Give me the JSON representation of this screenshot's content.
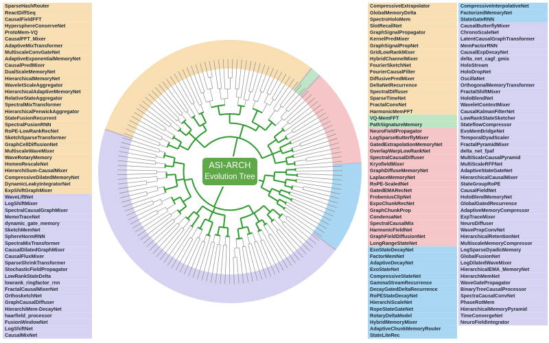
{
  "center": {
    "title": "ASI-ARCH",
    "subtitle": "Evolution Tree"
  },
  "colors": {
    "branch": "#2e9a2e",
    "leaf_line": "#8a8a8a",
    "center_box": "#5ea848"
  },
  "sectors": [
    {
      "name": "blue",
      "color": "#a8d6f3",
      "text_color": "#1a3558",
      "labels": [
        "ExoStateDecayNet",
        "FactorMemNet",
        "AdaptiveDecayNet",
        "ExoStateNet",
        "CompressiveStateNet",
        "GammaStreamRecurrence",
        "DecayGatedDeltaRecurrence",
        "RoPEStateDecayNet",
        "HierarchiScaleNet",
        "RopeStateGateNet",
        "RotaryDeltaModel",
        "HybridMemoryMixer",
        "AdaptiveChunkMemoryRouter",
        "StateLiteRec",
        "CompressiveInterpolativeNet",
        "FactorizedMemoryNet",
        "StateGateRNN"
      ]
    },
    {
      "name": "purple",
      "color": "#d6d2f2",
      "text_color": "#1f2a36",
      "labels": [
        "CausalButterflyMixer",
        "ChronoScaleNet",
        "LatentCausalGraphTransformer",
        "MemFactorRNN",
        "CausalExpDecayNet",
        "delta_net_cagf_gmix",
        "HoloStream",
        "HoloDropNet",
        "OscillaNet",
        "OrthogonalMemoryTransformer",
        "FractalShiftMixer",
        "HoloBlendNet",
        "WaveletContextMixer",
        "CausalKalmanFilterNet",
        "LowRankStateSketcher",
        "StateflowCompressor",
        "EvoMemBridgeNet",
        "TemporalDyadScaler",
        "FractalPyramidMixer",
        "delta_net_fpaf",
        "MultiScaleCausalPyramid",
        "MultiScaleRFFNet",
        "AdaptiveStateGateNet",
        "HierarchicalCausalMixer",
        "StateGroupRoPE",
        "CausalFieldNet",
        "HoloBlendMemoryNet",
        "GlobalGatedRecurrence",
        "AdaptiveMemoryCompressor",
        "ExpTraceMixer",
        "NeuroDiffuser",
        "WavePropConvNet",
        "HierarchicalRetentionNet",
        "MultiscaleMemoryCompressor",
        "LogSparseDyadicMemory",
        "GlobalFusionNet",
        "LogDilatedWaveMixer",
        "HierarchicalEMA_MemoryNet",
        "HierarchMemNet",
        "WaveGatePropagator",
        "BinaryTreeCausalProcessor",
        "SpectraCausalConvNet",
        "PhaseRotMem",
        "HierarchicalMemoryPyramid",
        "TimeConvergeNet",
        "NeuroFieldIntegrator",
        "CausalMixNet",
        "LogShiftNet",
        "FusionWindowNet",
        "haarfield_processor",
        "HierarchiMem-DecayNet",
        "GraphCausalDiffuser",
        "OrthosketchNet",
        "FractalCausalMixerNet",
        "lowrank_ringfactor_rnn",
        "LowRankStateDelta",
        "StochasticFieldPropagator",
        "SparseShrinkTransformer",
        "CausalFluxMixer",
        "CausalDilatedGraphMixer",
        "SpectraMixTransformer",
        "SphereNormRNN",
        "SketchMemNet",
        "dynamic_gate_memory",
        "MemoTraceNet",
        "SpectralCausalGraphMixer",
        "LogShiftMixer",
        "WaveLiftNet"
      ]
    },
    {
      "name": "orange",
      "color": "#f8deb3",
      "text_color": "#1f2a36",
      "labels": [
        "ExpShiftGraphMixer",
        "DynamicLeakyIntegratorNet",
        "CompressiveDilatedMemoryNet",
        "HierarchiSum-CausalMixer",
        "HomeoRescaleNet",
        "WaveRotaryMemory",
        "MultiscaleWaveMixer",
        "GraphCellDiffusionNet",
        "SketchSparseTransformer",
        "RoPE-LowRankRecNet",
        "SpectralFusionRNN",
        "StateFusionRecurrent",
        "HierarchicalFenwickAggregator",
        "SpectralMixTransformer",
        "RelativeStateAggregator",
        "HierarchicalAdaptiveMemoryNet",
        "WaveletScaleAggregator",
        "HierarchicalMemoryNet",
        "DualScaleMemoryNet",
        "CausalPredMixer",
        "AdaptiveExponentialMemoryNet",
        "MultiscaleConvGateNet",
        "AdaptiveMixTransformer",
        "CausalFFT_Mixer",
        "ProtoMem-VQ",
        "HypersphereConserveNet",
        "CausalFieldFFT",
        "ReactDiffSeq",
        "SparseHashRouter",
        "CompressiveExtrapolator",
        "GlobalMemoryDelta",
        "SpectroHoloMem",
        "SlotRecallNet",
        "GraphSignalPropagator",
        "KernelPredMixer",
        "GraphSignalPropNet",
        "GridLowRankMixer",
        "HybridChannelMixer",
        "FourierSketchNet",
        "FourierCausalFilter",
        "DiffusivePredMixer",
        "DeltaNetRecurrence",
        "SpectralDiffuser",
        "SparseTimeNet",
        "FractalConvNet",
        "HarmonicMemFFT"
      ]
    },
    {
      "name": "green",
      "color": "#bfe6c4",
      "text_color": "#1f2a36",
      "labels": [
        "VQ-MemFFT",
        "PathSignatureMemory"
      ]
    },
    {
      "name": "pink",
      "color": "#f5c5c7",
      "text_color": "#1f2a36",
      "labels": [
        "NeuroFieldPropagator",
        "LogSparseButterflyMixer",
        "GatedExtrapolationMemoryNet",
        "OverlapWarpLowRankNet",
        "SpectralCausalDiffuser",
        "KryofieldMixer",
        "GraphDiffuseMemoryNet",
        "LaplaceMemoryNet",
        "RoPE-ScaledNet",
        "GatedEMARecNet",
        "FrobeniusClipNet",
        "ExpoChunkRecNet",
        "GraphChunkProp",
        "CondensaNet",
        "SpectralCausalMix",
        "HarmonicFieldNet",
        "GraphFieldDiffusionNet",
        "LongRangeStateNet"
      ]
    }
  ]
}
